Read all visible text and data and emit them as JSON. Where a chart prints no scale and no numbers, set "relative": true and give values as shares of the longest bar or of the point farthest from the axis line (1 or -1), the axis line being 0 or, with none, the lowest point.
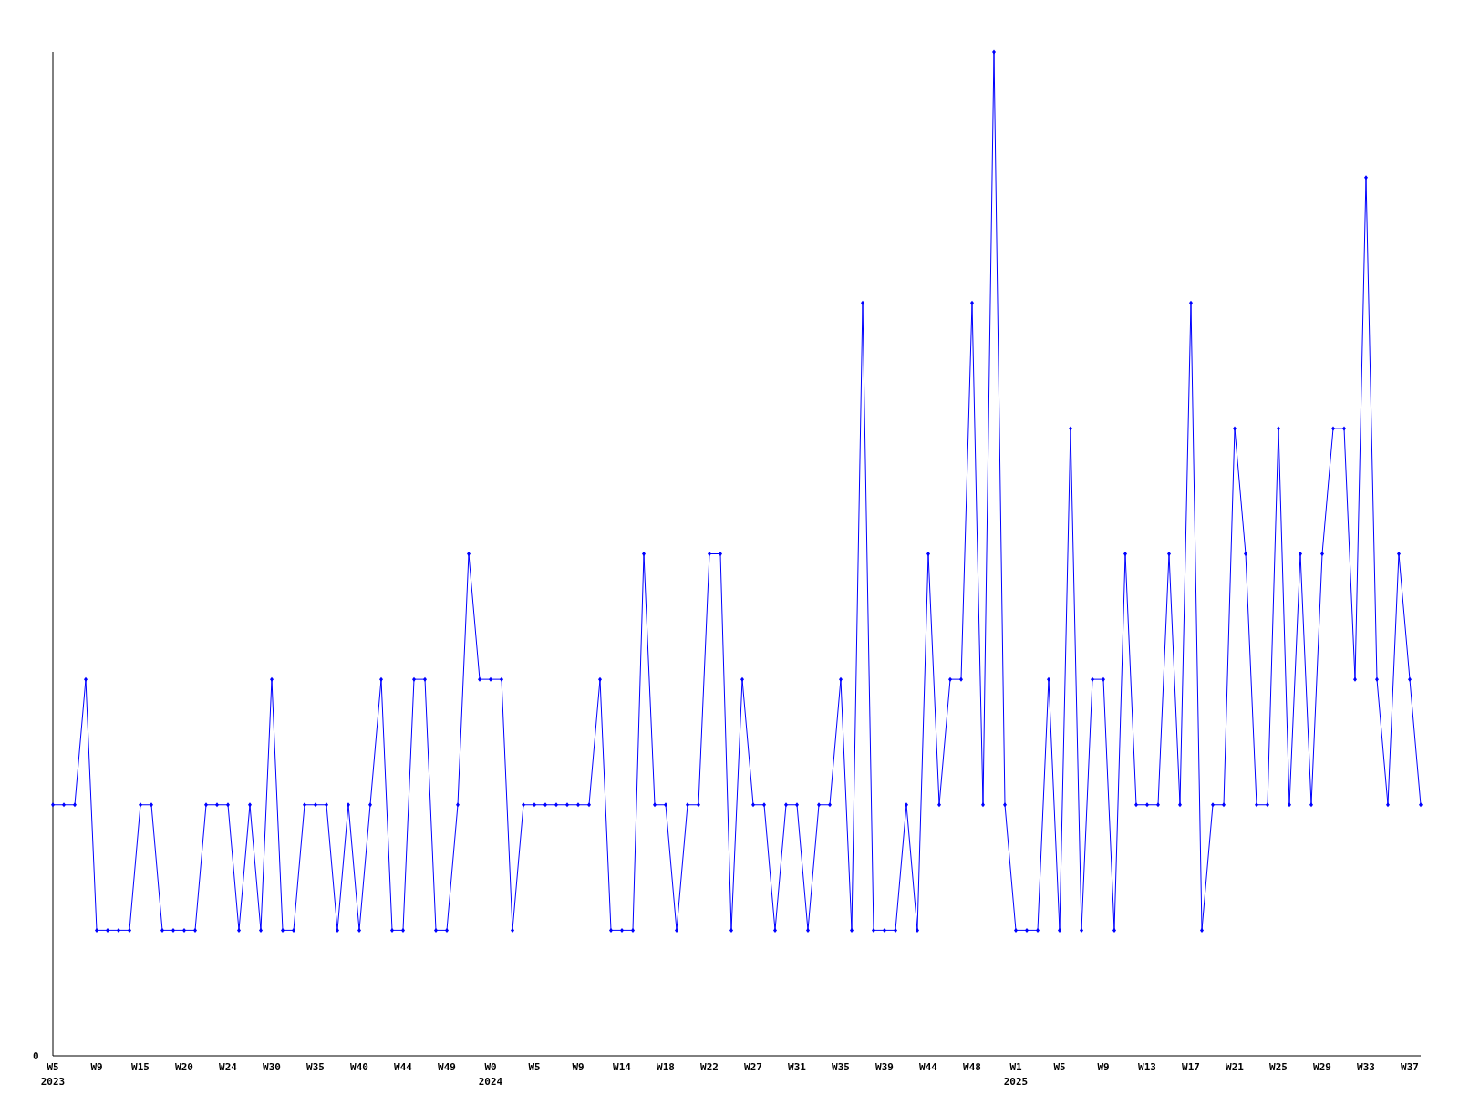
{
  "chart_data": {
    "type": "line",
    "relative": true,
    "marker": "diamond",
    "line_style": "solid",
    "annotations": [
      "0"
    ],
    "categories": [
      "W5\n2023",
      null,
      null,
      null,
      "W9",
      null,
      null,
      null,
      "W15",
      null,
      null,
      null,
      "W20",
      null,
      null,
      null,
      "W24",
      null,
      null,
      null,
      "W30",
      null,
      null,
      null,
      "W35",
      null,
      null,
      null,
      "W40",
      null,
      null,
      null,
      "W44",
      null,
      null,
      null,
      "W49",
      null,
      null,
      null,
      "W0\n2024",
      null,
      null,
      null,
      "W5",
      null,
      null,
      null,
      "W9",
      null,
      null,
      null,
      "W14",
      null,
      null,
      null,
      "W18",
      null,
      null,
      null,
      "W22",
      null,
      null,
      null,
      "W27",
      null,
      null,
      null,
      "W31",
      null,
      null,
      null,
      "W35",
      null,
      null,
      null,
      "W39",
      null,
      null,
      null,
      "W44",
      null,
      null,
      null,
      "W48",
      null,
      null,
      null,
      "W1\n2025",
      null,
      null,
      null,
      "W5",
      null,
      null,
      null,
      "W9",
      null,
      null,
      null,
      "W13",
      null,
      null,
      null,
      "W17",
      null,
      null,
      null,
      "W21",
      null,
      null,
      null,
      "W25",
      null,
      null,
      null,
      "W29",
      null,
      null,
      null,
      "W33",
      null,
      null,
      null,
      "W37",
      null
    ],
    "series": [
      {
        "color": "#0000ff",
        "values": [
          0.25,
          0.25,
          0.25,
          0.375,
          0.125,
          0.125,
          0.125,
          0.125,
          0.25,
          0.25,
          0.125,
          0.125,
          0.125,
          0.125,
          0.25,
          0.25,
          0.25,
          0.125,
          0.25,
          0.125,
          0.375,
          0.125,
          0.125,
          0.25,
          0.25,
          0.25,
          0.125,
          0.25,
          0.125,
          0.25,
          0.375,
          0.125,
          0.125,
          0.375,
          0.375,
          0.125,
          0.125,
          0.25,
          0.5,
          0.375,
          0.375,
          0.375,
          0.125,
          0.25,
          0.25,
          0.25,
          0.25,
          0.25,
          0.25,
          0.25,
          0.375,
          0.125,
          0.125,
          0.125,
          0.5,
          0.25,
          0.25,
          0.125,
          0.25,
          0.25,
          0.5,
          0.5,
          0.125,
          0.375,
          0.25,
          0.25,
          0.125,
          0.25,
          0.25,
          0.125,
          0.25,
          0.25,
          0.375,
          0.125,
          0.75,
          0.125,
          0.125,
          0.125,
          0.25,
          0.125,
          0.5,
          0.25,
          0.375,
          0.375,
          0.75,
          0.25,
          1,
          0.25,
          0.125,
          0.125,
          0.125,
          0.375,
          0.125,
          0.625,
          0.125,
          0.375,
          0.375,
          0.125,
          0.5,
          0.25,
          0.25,
          0.25,
          0.5,
          0.25,
          0.75,
          0.125,
          0.25,
          0.25,
          0.625,
          0.5,
          0.25,
          0.25,
          0.625,
          0.25,
          0.5,
          0.25,
          0.5,
          0.625,
          0.625,
          0.375,
          0.875,
          0.375,
          0.25,
          0.5,
          0.375,
          0.25
        ]
      }
    ]
  }
}
